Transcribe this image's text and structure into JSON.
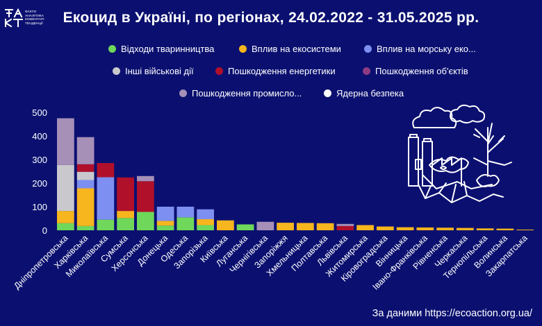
{
  "header": {
    "title": "Екоцид в Україні, по регіонах, 24.02.2022 - 31.05.2025 рр.",
    "logo_mark": "ФА\nКТ",
    "logo_lines": [
      "ФАКТИ",
      "АНАЛІТИКА",
      "КОМЕНТАРІ",
      "ТЕНДЕНЦІЇ"
    ]
  },
  "source": "За даними https://ecoaction.org.ua/",
  "colors": {
    "background": "#0b1070",
    "axis_text": "#ffffff",
    "grid": "#2a2f8a"
  },
  "chart_data": {
    "type": "bar",
    "stacked": true,
    "title": "Екоцид в Україні, по регіонах, 24.02.2022 - 31.05.2025 рр.",
    "xlabel": "",
    "ylabel": "",
    "ylim": [
      0,
      500
    ],
    "yticks": [
      0,
      100,
      200,
      300,
      400,
      500
    ],
    "grid": false,
    "legend_position": "top",
    "categories": [
      "Дніпропетровська",
      "Харківська",
      "Миколаївська",
      "Сумська",
      "Херсонська",
      "Донецька",
      "Одеська",
      "Запорізька",
      "Київська",
      "Луганська",
      "Чернігівська",
      "Запоріжжя",
      "Хмельницька",
      "Полтавська",
      "Львівська",
      "Житомирська",
      "Кіровоградська",
      "Вінницька",
      "Івано-Франківська",
      "Рівненська",
      "Черкаська",
      "Тернопільська",
      "Волинська",
      "Закарпатська"
    ],
    "series": [
      {
        "name": "Відходи тваринництва",
        "color": "#6fd75a",
        "values": [
          30,
          18,
          45,
          52,
          78,
          20,
          55,
          22,
          0,
          25,
          0,
          0,
          0,
          0,
          0,
          0,
          0,
          0,
          0,
          0,
          0,
          0,
          0,
          0
        ]
      },
      {
        "name": "Вплив на екосистеми",
        "color": "#f7b51e",
        "values": [
          52,
          160,
          0,
          30,
          0,
          20,
          0,
          25,
          42,
          0,
          0,
          32,
          31,
          30,
          0,
          22,
          16,
          13,
          12,
          11,
          10,
          8,
          7,
          3
        ]
      },
      {
        "name": "Вплив на морську еко...",
        "color": "#7d8ff0",
        "values": [
          0,
          35,
          180,
          0,
          0,
          60,
          45,
          42,
          0,
          0,
          0,
          0,
          0,
          0,
          0,
          0,
          0,
          0,
          0,
          0,
          0,
          0,
          0,
          0
        ]
      },
      {
        "name": "Інші військові дії",
        "color": "#c9c9cd",
        "values": [
          195,
          35,
          0,
          0,
          0,
          0,
          0,
          0,
          0,
          0,
          0,
          0,
          0,
          0,
          0,
          0,
          0,
          0,
          0,
          0,
          0,
          0,
          0,
          0
        ]
      },
      {
        "name": "Пошкодження енергетики",
        "color": "#b0102a",
        "values": [
          0,
          32,
          60,
          142,
          130,
          0,
          0,
          0,
          0,
          0,
          0,
          0,
          0,
          0,
          18,
          0,
          0,
          0,
          0,
          0,
          0,
          0,
          0,
          0
        ]
      },
      {
        "name": "Пошкодження об'єктів",
        "color": "#8e3b82",
        "values": [
          0,
          0,
          0,
          0,
          0,
          0,
          0,
          0,
          0,
          0,
          0,
          0,
          0,
          0,
          0,
          0,
          0,
          0,
          0,
          0,
          0,
          0,
          0,
          0
        ]
      },
      {
        "name": "Пошкодження промисло...",
        "color": "#a690b8",
        "values": [
          198,
          115,
          0,
          0,
          22,
          0,
          0,
          0,
          0,
          0,
          36,
          0,
          0,
          0,
          9,
          0,
          0,
          0,
          0,
          0,
          0,
          0,
          0,
          0
        ]
      },
      {
        "name": "Ядерна безпека",
        "color": "#ffffff",
        "values": [
          0,
          0,
          0,
          0,
          0,
          0,
          0,
          0,
          0,
          0,
          0,
          0,
          0,
          0,
          0,
          0,
          0,
          0,
          0,
          0,
          0,
          0,
          0,
          0
        ]
      }
    ]
  }
}
